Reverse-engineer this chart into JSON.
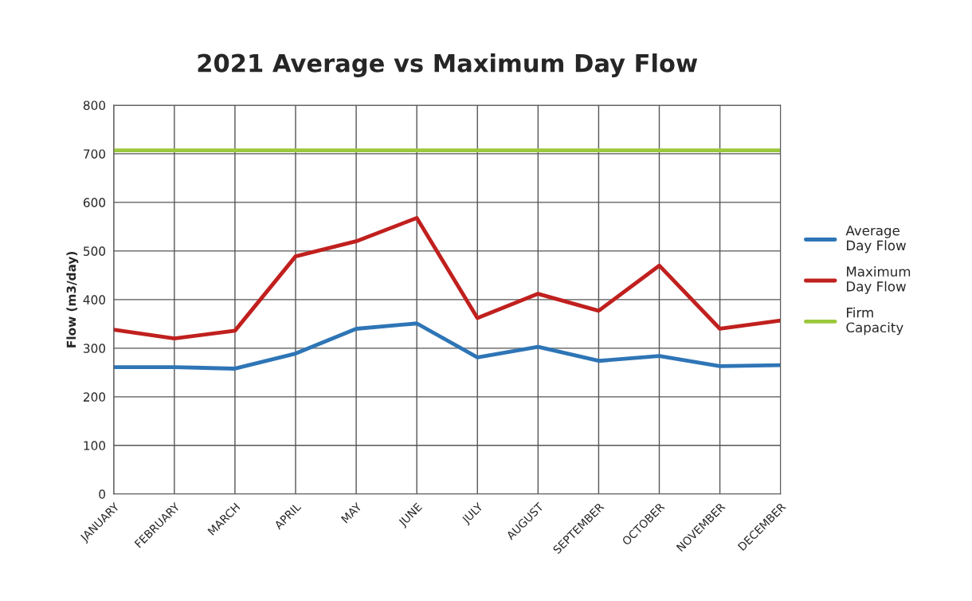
{
  "chart_data": {
    "type": "line",
    "title": "2021 Average vs Maximum Day Flow",
    "ylabel": "Flow (m3/day)",
    "categories": [
      "JANUARY",
      "FEBRUARY",
      "MARCH",
      "APRIL",
      "MAY",
      "JUNE",
      "JULY",
      "AUGUST",
      "SEPTEMBER",
      "OCTOBER",
      "NOVEMBER",
      "DECEMBER"
    ],
    "series": [
      {
        "name": "Average Day Flow",
        "color": "#2e75b6",
        "values": [
          261,
          261,
          258,
          289,
          340,
          351,
          281,
          303,
          274,
          284,
          263,
          265
        ]
      },
      {
        "name": "Maximum Day Flow",
        "color": "#c0201e",
        "values": [
          338,
          320,
          336,
          489,
          520,
          568,
          362,
          412,
          377,
          470,
          340,
          357
        ]
      },
      {
        "name": "Firm Capacity",
        "color": "#9bc83c",
        "values": [
          707,
          707,
          707,
          707,
          707,
          707,
          707,
          707,
          707,
          707,
          707,
          707
        ]
      }
    ],
    "ylim": [
      0,
      800
    ],
    "yticks": [
      0,
      100,
      200,
      300,
      400,
      500,
      600,
      700,
      800
    ],
    "grid": true,
    "legend": "right",
    "marker": "none",
    "line_style": "solid"
  }
}
